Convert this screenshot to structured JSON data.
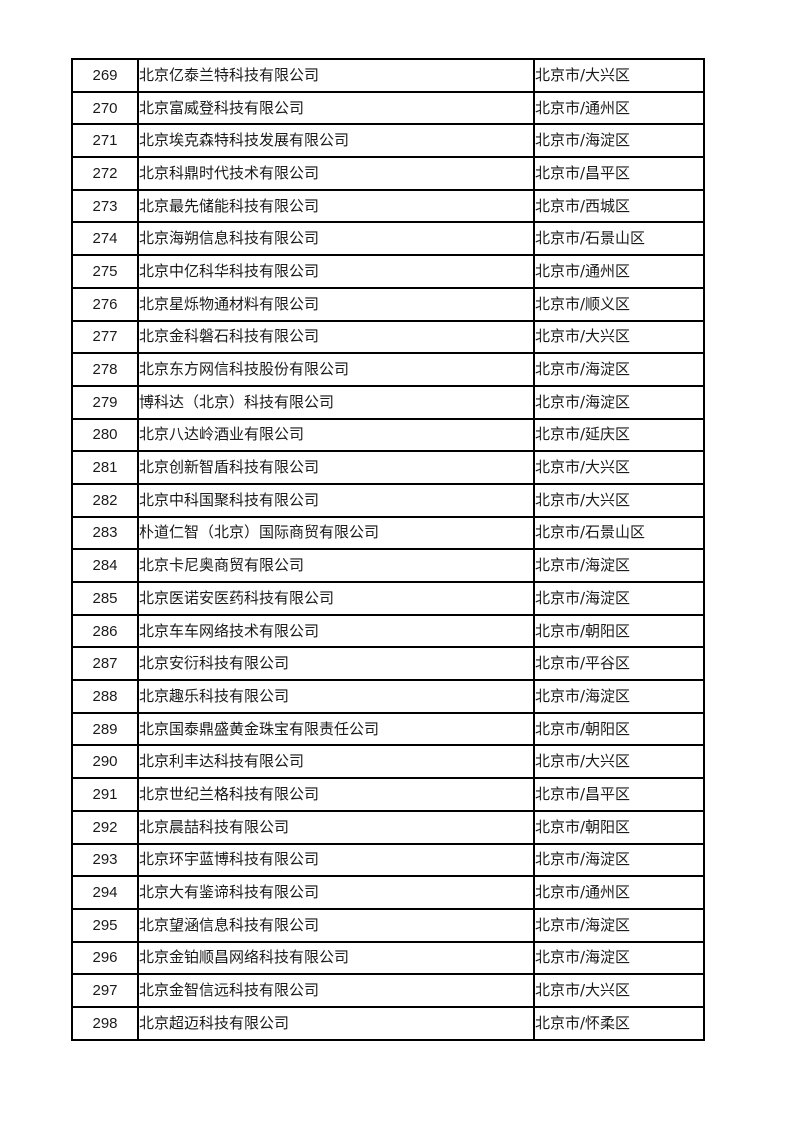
{
  "table": {
    "rows": [
      {
        "no": "269",
        "company": "北京亿泰兰特科技有限公司",
        "region": "北京市/大兴区"
      },
      {
        "no": "270",
        "company": "北京富威登科技有限公司",
        "region": "北京市/通州区"
      },
      {
        "no": "271",
        "company": "北京埃克森特科技发展有限公司",
        "region": "北京市/海淀区"
      },
      {
        "no": "272",
        "company": "北京科鼎时代技术有限公司",
        "region": "北京市/昌平区"
      },
      {
        "no": "273",
        "company": "北京最先储能科技有限公司",
        "region": "北京市/西城区"
      },
      {
        "no": "274",
        "company": "北京海朔信息科技有限公司",
        "region": "北京市/石景山区"
      },
      {
        "no": "275",
        "company": "北京中亿科华科技有限公司",
        "region": "北京市/通州区"
      },
      {
        "no": "276",
        "company": "北京星烁物通材料有限公司",
        "region": "北京市/顺义区"
      },
      {
        "no": "277",
        "company": "北京金科磐石科技有限公司",
        "region": "北京市/大兴区"
      },
      {
        "no": "278",
        "company": "北京东方网信科技股份有限公司",
        "region": "北京市/海淀区"
      },
      {
        "no": "279",
        "company": "博科达（北京）科技有限公司",
        "region": "北京市/海淀区"
      },
      {
        "no": "280",
        "company": "北京八达岭酒业有限公司",
        "region": "北京市/延庆区"
      },
      {
        "no": "281",
        "company": "北京创新智盾科技有限公司",
        "region": "北京市/大兴区"
      },
      {
        "no": "282",
        "company": "北京中科国聚科技有限公司",
        "region": "北京市/大兴区"
      },
      {
        "no": "283",
        "company": "朴道仁智（北京）国际商贸有限公司",
        "region": "北京市/石景山区"
      },
      {
        "no": "284",
        "company": "北京卡尼奥商贸有限公司",
        "region": "北京市/海淀区"
      },
      {
        "no": "285",
        "company": "北京医诺安医药科技有限公司",
        "region": "北京市/海淀区"
      },
      {
        "no": "286",
        "company": "北京车车网络技术有限公司",
        "region": "北京市/朝阳区"
      },
      {
        "no": "287",
        "company": "北京安衍科技有限公司",
        "region": "北京市/平谷区"
      },
      {
        "no": "288",
        "company": "北京趣乐科技有限公司",
        "region": "北京市/海淀区"
      },
      {
        "no": "289",
        "company": "北京国泰鼎盛黄金珠宝有限责任公司",
        "region": "北京市/朝阳区"
      },
      {
        "no": "290",
        "company": "北京利丰达科技有限公司",
        "region": "北京市/大兴区"
      },
      {
        "no": "291",
        "company": "北京世纪兰格科技有限公司",
        "region": "北京市/昌平区"
      },
      {
        "no": "292",
        "company": "北京晨喆科技有限公司",
        "region": "北京市/朝阳区"
      },
      {
        "no": "293",
        "company": "北京环宇蓝博科技有限公司",
        "region": "北京市/海淀区"
      },
      {
        "no": "294",
        "company": "北京大有鉴谛科技有限公司",
        "region": "北京市/通州区"
      },
      {
        "no": "295",
        "company": "北京望涵信息科技有限公司",
        "region": "北京市/海淀区"
      },
      {
        "no": "296",
        "company": "北京金铂顺昌网络科技有限公司",
        "region": "北京市/海淀区"
      },
      {
        "no": "297",
        "company": "北京金智信远科技有限公司",
        "region": "北京市/大兴区"
      },
      {
        "no": "298",
        "company": "北京超迈科技有限公司",
        "region": "北京市/怀柔区"
      }
    ]
  }
}
